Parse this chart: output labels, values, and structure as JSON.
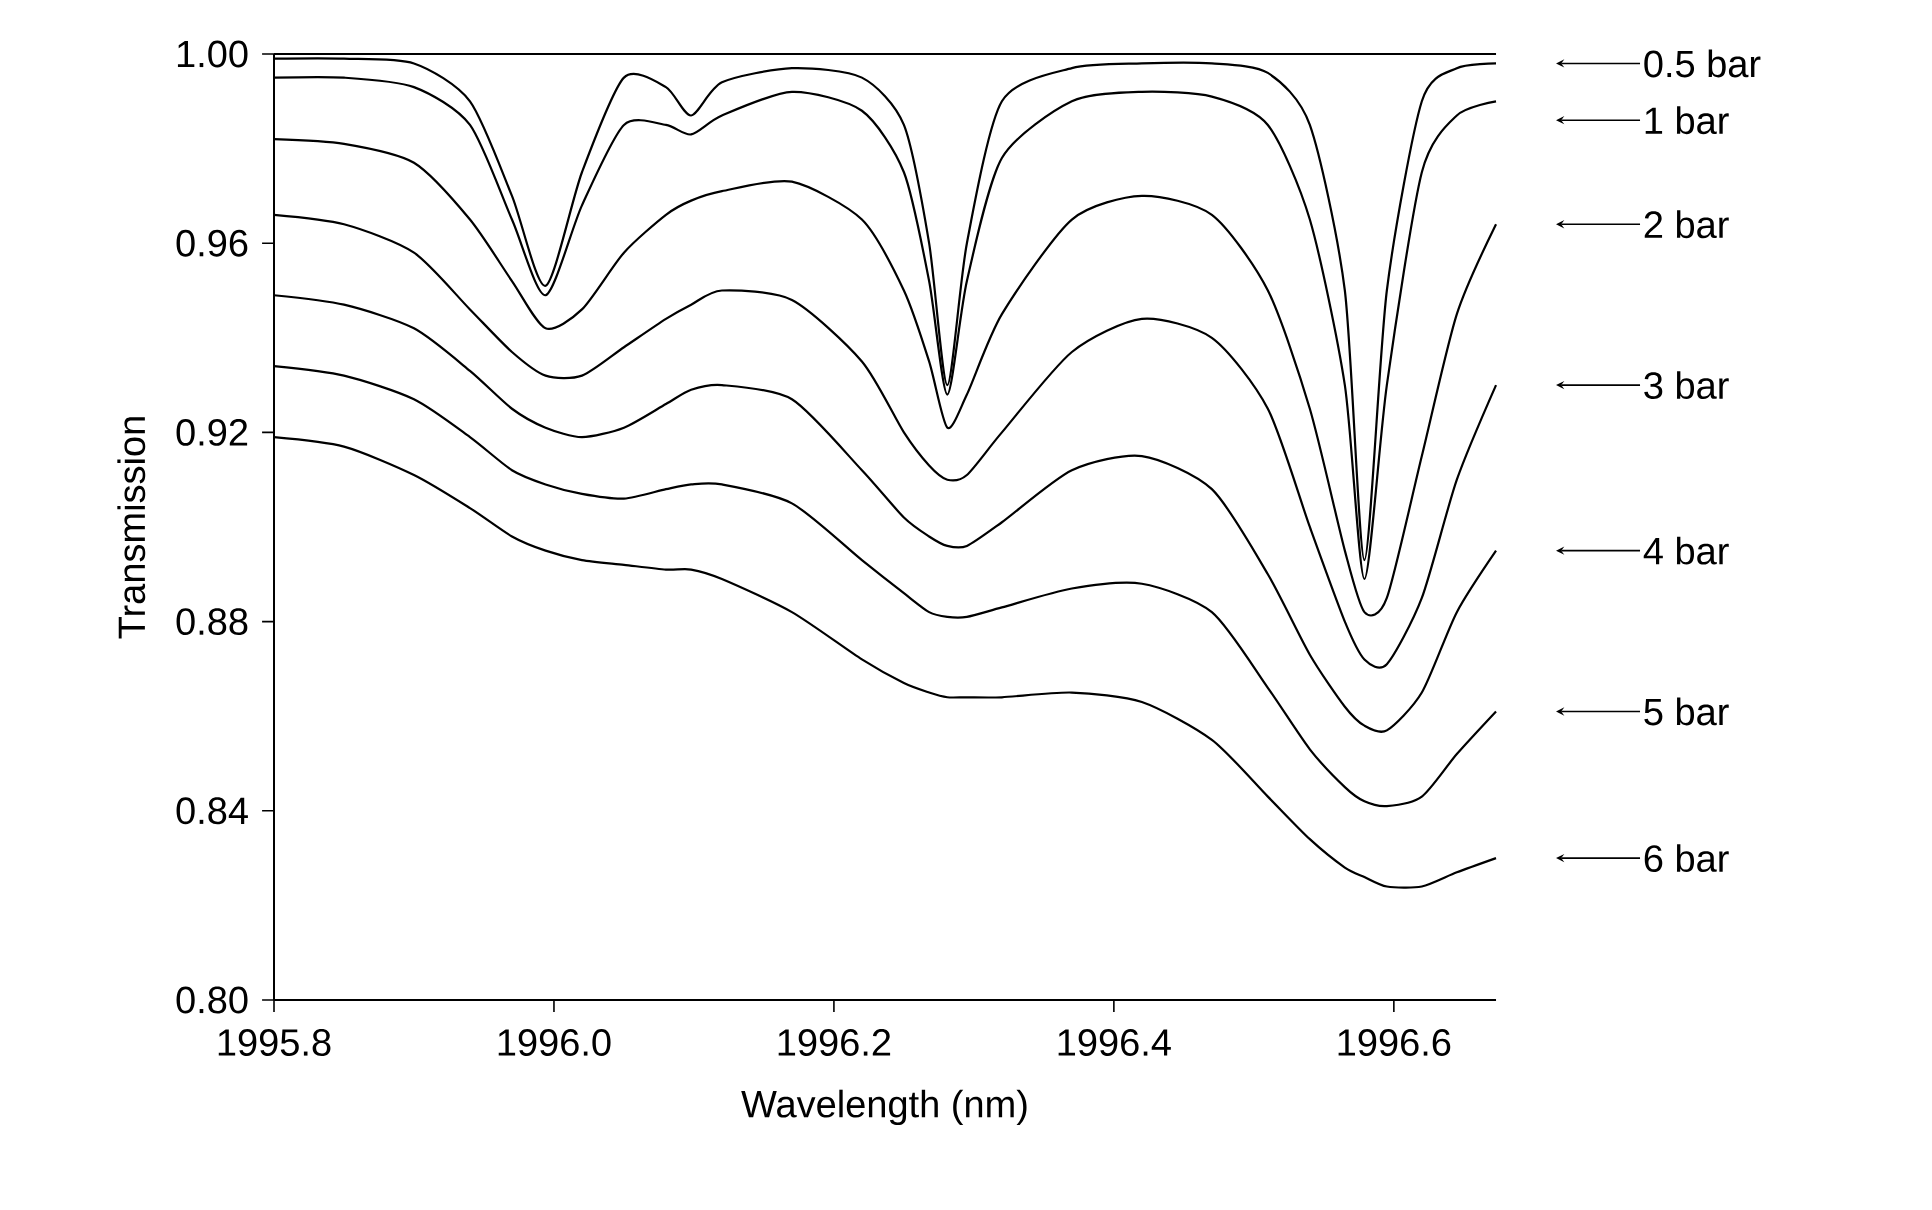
{
  "chart_data": {
    "type": "line",
    "xlabel": "Wavelength (nm)",
    "ylabel": "Transmission",
    "xlim": [
      1995.8,
      1996.673
    ],
    "ylim": [
      0.8,
      1.0
    ],
    "xticks": [
      {
        "value": 1995.8,
        "label": "1995.8"
      },
      {
        "value": 1996.0,
        "label": "1996.0"
      },
      {
        "value": 1996.2,
        "label": "1996.2"
      },
      {
        "value": 1996.4,
        "label": "1996.4"
      },
      {
        "value": 1996.6,
        "label": "1996.6"
      }
    ],
    "yticks": [
      {
        "value": 0.8,
        "label": "0.80"
      },
      {
        "value": 0.84,
        "label": "0.84"
      },
      {
        "value": 0.88,
        "label": "0.88"
      },
      {
        "value": 0.92,
        "label": "0.92"
      },
      {
        "value": 0.96,
        "label": "0.96"
      },
      {
        "value": 1.0,
        "label": "1.00"
      }
    ],
    "line_style": "solid",
    "legend": "right",
    "x": [
      1995.8,
      1995.85,
      1995.9,
      1995.94,
      1995.97,
      1995.994,
      1996.02,
      1996.05,
      1996.08,
      1996.098,
      1996.12,
      1996.17,
      1996.22,
      1996.25,
      1996.268,
      1996.281,
      1996.295,
      1996.32,
      1996.37,
      1996.42,
      1996.47,
      1996.51,
      1996.54,
      1996.565,
      1996.579,
      1996.595,
      1996.62,
      1996.645,
      1996.673
    ],
    "series": [
      {
        "name": "0.5 bar",
        "color": "#000000",
        "values": [
          0.999,
          0.999,
          0.998,
          0.99,
          0.97,
          0.951,
          0.975,
          0.995,
          0.993,
          0.987,
          0.994,
          0.997,
          0.995,
          0.985,
          0.96,
          0.93,
          0.96,
          0.99,
          0.997,
          0.998,
          0.998,
          0.996,
          0.985,
          0.95,
          0.893,
          0.95,
          0.99,
          0.997,
          0.998
        ]
      },
      {
        "name": "1 bar",
        "color": "#000000",
        "values": [
          0.995,
          0.995,
          0.993,
          0.985,
          0.965,
          0.949,
          0.968,
          0.985,
          0.985,
          0.983,
          0.987,
          0.992,
          0.988,
          0.975,
          0.952,
          0.928,
          0.952,
          0.978,
          0.99,
          0.992,
          0.991,
          0.985,
          0.965,
          0.93,
          0.889,
          0.93,
          0.975,
          0.987,
          0.99
        ]
      },
      {
        "name": "2 bar",
        "color": "#000000",
        "values": [
          0.982,
          0.981,
          0.977,
          0.965,
          0.952,
          0.942,
          0.946,
          0.958,
          0.966,
          0.969,
          0.971,
          0.973,
          0.965,
          0.95,
          0.935,
          0.921,
          0.928,
          0.945,
          0.965,
          0.97,
          0.966,
          0.95,
          0.925,
          0.895,
          0.882,
          0.885,
          0.915,
          0.945,
          0.964
        ]
      },
      {
        "name": "3 bar",
        "color": "#000000",
        "values": [
          0.966,
          0.964,
          0.958,
          0.946,
          0.937,
          0.932,
          0.932,
          0.938,
          0.944,
          0.947,
          0.95,
          0.948,
          0.935,
          0.92,
          0.913,
          0.91,
          0.911,
          0.92,
          0.937,
          0.944,
          0.94,
          0.925,
          0.9,
          0.88,
          0.872,
          0.871,
          0.885,
          0.91,
          0.93
        ]
      },
      {
        "name": "4 bar",
        "color": "#000000",
        "values": [
          0.949,
          0.947,
          0.942,
          0.933,
          0.925,
          0.921,
          0.919,
          0.921,
          0.926,
          0.929,
          0.93,
          0.927,
          0.912,
          0.902,
          0.898,
          0.896,
          0.896,
          0.901,
          0.912,
          0.915,
          0.908,
          0.89,
          0.873,
          0.862,
          0.858,
          0.857,
          0.865,
          0.882,
          0.895
        ]
      },
      {
        "name": "5 bar",
        "color": "#000000",
        "values": [
          0.934,
          0.932,
          0.927,
          0.919,
          0.912,
          0.909,
          0.907,
          0.906,
          0.908,
          0.909,
          0.909,
          0.905,
          0.893,
          0.886,
          0.882,
          0.881,
          0.881,
          0.883,
          0.887,
          0.888,
          0.882,
          0.866,
          0.853,
          0.845,
          0.842,
          0.841,
          0.843,
          0.852,
          0.861
        ]
      },
      {
        "name": "6 bar",
        "color": "#000000",
        "values": [
          0.919,
          0.917,
          0.911,
          0.904,
          0.898,
          0.895,
          0.893,
          0.892,
          0.891,
          0.891,
          0.889,
          0.882,
          0.872,
          0.867,
          0.865,
          0.864,
          0.864,
          0.864,
          0.865,
          0.863,
          0.855,
          0.843,
          0.834,
          0.828,
          0.826,
          0.824,
          0.824,
          0.827,
          0.83
        ]
      }
    ]
  }
}
